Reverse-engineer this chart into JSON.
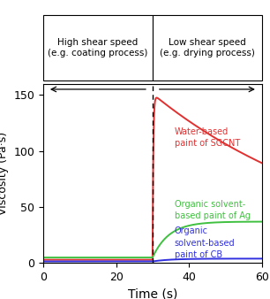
{
  "xlabel": "Time (s)",
  "ylabel": "Viscosity (Pa·s)",
  "xlim": [
    0,
    60
  ],
  "ylim": [
    0,
    160
  ],
  "yticks": [
    0,
    50,
    100,
    150
  ],
  "xticks": [
    0,
    20,
    40,
    60
  ],
  "dashed_x": 30,
  "box_left_text": "High shear speed\n(e.g. coating process)",
  "box_right_text": "Low shear speed\n(e.g. drying process)",
  "label_sgcnt": "Water-based\npaint of SGCNT",
  "label_ag": "Organic solvent-\nbased paint of Ag",
  "label_cb": "Organic\nsolvent-based\npaint of CB",
  "color_sgcnt": "#e03030",
  "color_ag": "#40c040",
  "color_cb": "#3030e0",
  "background": "#ffffff"
}
